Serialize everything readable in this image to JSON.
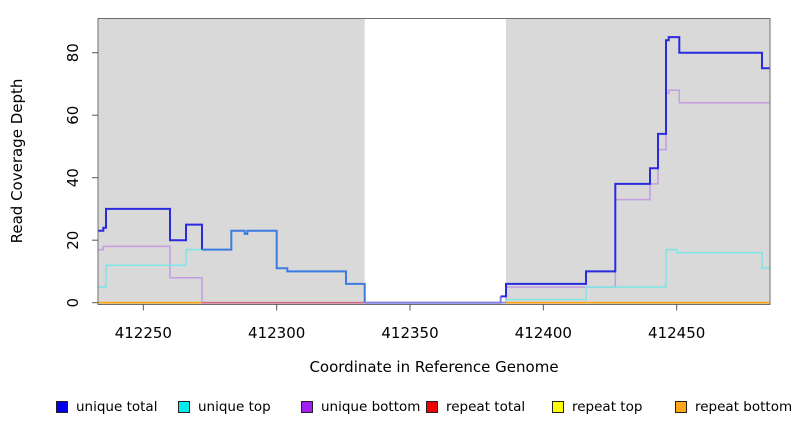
{
  "chart_data": {
    "type": "line",
    "step": true,
    "title": "",
    "xlabel": "Coordinate in Reference Genome",
    "ylabel": "Read Coverage Depth",
    "xlim": [
      412233,
      412485
    ],
    "ylim": [
      0,
      91
    ],
    "x_ticks": [
      412250,
      412300,
      412350,
      412400,
      412450
    ],
    "y_ticks": [
      0,
      20,
      40,
      60,
      80
    ],
    "grid": false,
    "legend_position": "bottom",
    "plot_background": "#D9D9D9",
    "masked_gap": {
      "from": 412333,
      "to": 412386
    },
    "shaded_regions": [
      {
        "from": 412233,
        "to": 412333,
        "color": "#D9D9D9"
      },
      {
        "from": 412386,
        "to": 412485,
        "color": "#D9D9D9"
      }
    ],
    "series": [
      {
        "name": "unique total",
        "color": "#2A2ADF",
        "width": 2,
        "points": [
          [
            412233,
            23
          ],
          [
            412235,
            24
          ],
          [
            412236,
            30
          ],
          [
            412260,
            20
          ],
          [
            412266,
            25
          ],
          [
            412272,
            17
          ],
          [
            412283,
            23
          ],
          [
            412288,
            22
          ],
          [
            412289,
            23
          ],
          [
            412300,
            11
          ],
          [
            412304,
            10
          ],
          [
            412326,
            6
          ],
          [
            412333,
            0
          ],
          [
            412384,
            2
          ],
          [
            412386,
            6
          ],
          [
            412416,
            10
          ],
          [
            412427,
            38
          ],
          [
            412440,
            43
          ],
          [
            412443,
            54
          ],
          [
            412446,
            84
          ],
          [
            412447,
            85
          ],
          [
            412451,
            80
          ],
          [
            412482,
            75
          ],
          [
            412485,
            75
          ]
        ],
        "color_segments": [
          {
            "until": 412272,
            "color": "#2A2ADF"
          },
          {
            "until": 412333,
            "color": "#3C7CE0"
          },
          {
            "until": 412384,
            "color": "#7F7EE4"
          },
          {
            "until": 412485,
            "color": "#2A2ADF"
          }
        ]
      },
      {
        "name": "unique top",
        "color": "#7FE5E8",
        "width": 1.5,
        "points": [
          [
            412233,
            5
          ],
          [
            412236,
            12
          ],
          [
            412266,
            17
          ],
          [
            412283,
            23
          ],
          [
            412288,
            22
          ],
          [
            412289,
            23
          ],
          [
            412300,
            11
          ],
          [
            412304,
            10
          ],
          [
            412326,
            6
          ],
          [
            412333,
            0
          ],
          [
            412386,
            1
          ],
          [
            412416,
            5
          ],
          [
            412446,
            17
          ],
          [
            412450,
            16
          ],
          [
            412482,
            11
          ],
          [
            412485,
            11
          ]
        ]
      },
      {
        "name": "unique bottom",
        "color": "#C49CE0",
        "width": 1.5,
        "points": [
          [
            412233,
            17
          ],
          [
            412235,
            18
          ],
          [
            412260,
            8
          ],
          [
            412272,
            0
          ],
          [
            412386,
            5
          ],
          [
            412427,
            33
          ],
          [
            412440,
            38
          ],
          [
            412443,
            49
          ],
          [
            412446,
            67
          ],
          [
            412447,
            68
          ],
          [
            412451,
            64
          ],
          [
            412485,
            64
          ]
        ]
      },
      {
        "name": "repeat total",
        "color": "#EE0000",
        "width": 1.4,
        "points": [
          [
            412233,
            0
          ],
          [
            412485,
            0
          ]
        ]
      },
      {
        "name": "repeat top",
        "color": "#FFFF00",
        "width": 1.4,
        "points": [
          [
            412233,
            0
          ],
          [
            412485,
            0
          ]
        ]
      },
      {
        "name": "repeat bottom",
        "color": "#FFA516",
        "width": 1.7,
        "points": [
          [
            412233,
            0
          ],
          [
            412485,
            0
          ]
        ]
      }
    ],
    "zero_line_overlay": [
      {
        "from": 412233,
        "to": 412272,
        "color": "#FFA516"
      },
      {
        "from": 412272,
        "to": 412333,
        "color": "#D4688C"
      },
      {
        "from": 412333,
        "to": 412386,
        "color": "#7F7EE4"
      },
      {
        "from": 412386,
        "to": 412485,
        "color": "#FFA516"
      }
    ]
  },
  "legend": {
    "items": [
      {
        "label": "unique total",
        "color": "#0000EE"
      },
      {
        "label": "unique top",
        "color": "#00EEEE"
      },
      {
        "label": "unique bottom",
        "color": "#A020F0"
      },
      {
        "label": "repeat total",
        "color": "#EE0000"
      },
      {
        "label": "repeat top",
        "color": "#FFFF00"
      },
      {
        "label": "repeat bottom",
        "color": "#FFA516"
      }
    ]
  }
}
